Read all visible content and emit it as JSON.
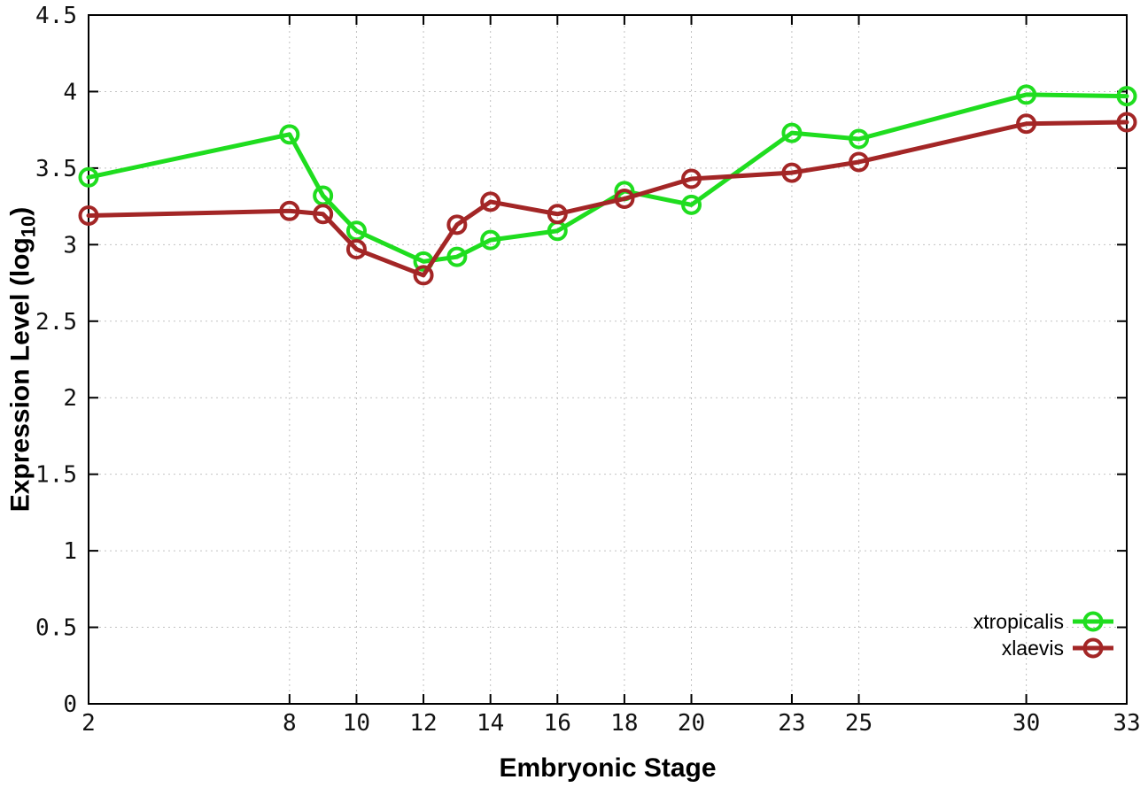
{
  "chart_data": {
    "type": "line",
    "title": "",
    "xlabel": "Embryonic Stage",
    "ylabel_main": "Expression Level (log",
    "ylabel_sub": "10",
    "ylabel_end": ")",
    "xlim": [
      2,
      33
    ],
    "ylim": [
      0,
      4.5
    ],
    "x_ticks": [
      2,
      8,
      10,
      12,
      14,
      16,
      18,
      20,
      23,
      25,
      30,
      33
    ],
    "y_ticks": [
      0,
      0.5,
      1,
      1.5,
      2,
      2.5,
      3,
      3.5,
      4,
      4.5
    ],
    "grid": true,
    "grid_style": "dotted",
    "legend_position": "bottom-right-inside",
    "axis_color": "#000000",
    "grid_color": "#c2c2c2",
    "marker": "open-circle",
    "x": [
      2,
      8,
      9,
      10,
      12,
      13,
      14,
      16,
      18,
      20,
      23,
      25,
      30,
      33
    ],
    "series": [
      {
        "name": "xtropicalis",
        "color": "#1fdd1f",
        "values": [
          3.44,
          3.72,
          3.32,
          3.09,
          2.89,
          2.92,
          3.03,
          3.09,
          3.35,
          3.26,
          3.73,
          3.69,
          3.98,
          3.97
        ]
      },
      {
        "name": "xlaevis",
        "color": "#a32626",
        "values": [
          3.19,
          3.22,
          3.2,
          2.97,
          2.8,
          3.13,
          3.28,
          3.2,
          3.3,
          3.43,
          3.47,
          3.54,
          3.79,
          3.8
        ]
      }
    ]
  }
}
